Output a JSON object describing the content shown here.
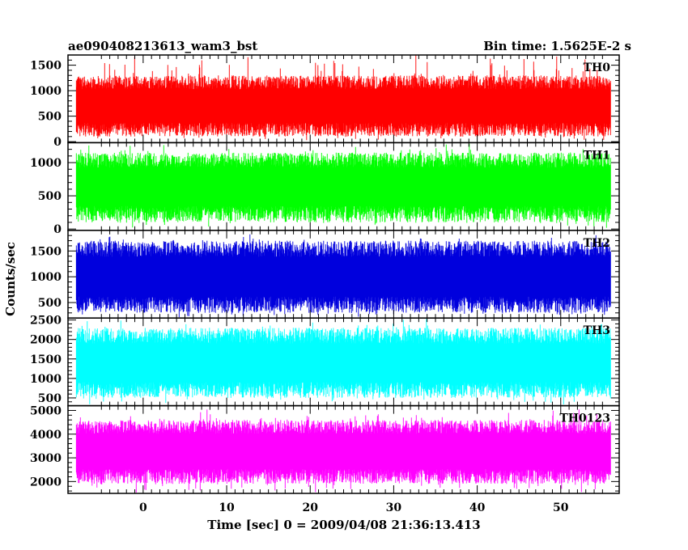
{
  "chart_data": {
    "type": "line",
    "title_left": "ae090408213613_wam3_bst",
    "title_right": "Bin time: 1.5625E-2  s",
    "xlabel": "Time [sec] 0 = 2009/04/08 21:36:13.413",
    "ylabel": "Counts/sec",
    "xlim": [
      -9,
      57
    ],
    "x_ticks_major": [
      0,
      10,
      20,
      30,
      40,
      50
    ],
    "x_tick_labels": [
      "0",
      "10",
      "20",
      "30",
      "40",
      "50"
    ],
    "data_x_range": [
      -8,
      56
    ],
    "bin_time_s": 0.015625,
    "panels": [
      {
        "name": "TH0",
        "color": "#ff0000",
        "ylim": [
          -20,
          1700
        ],
        "ticks_major": [
          0,
          500,
          1000,
          1500
        ],
        "tick_labels": [
          "0",
          "500",
          "1000",
          "1500"
        ],
        "minor_step": 100,
        "mean": 700,
        "low_p": 100,
        "high_p": 1300,
        "min": 0,
        "max": 1700
      },
      {
        "name": "TH1",
        "color": "#00ff00",
        "ylim": [
          -20,
          1300
        ],
        "ticks_major": [
          0,
          500,
          1000
        ],
        "tick_labels": [
          "0",
          "500",
          "1000"
        ],
        "minor_step": 100,
        "mean": 650,
        "low_p": 100,
        "high_p": 1150,
        "min": 0,
        "max": 1300
      },
      {
        "name": "TH2",
        "color": "#0000dd",
        "ylim": [
          200,
          1900
        ],
        "ticks_major": [
          500,
          1000,
          1500
        ],
        "tick_labels": [
          "500",
          "1000",
          "1500"
        ],
        "minor_step": 100,
        "mean": 1000,
        "low_p": 300,
        "high_p": 1700,
        "min": 200,
        "max": 1900
      },
      {
        "name": "TH3",
        "color": "#00ffff",
        "ylim": [
          300,
          2550
        ],
        "ticks_major": [
          500,
          1000,
          1500,
          2000,
          2500
        ],
        "tick_labels": [
          "500",
          "1000",
          "1500",
          "2000",
          "2500"
        ],
        "minor_step": 100,
        "mean": 1400,
        "low_p": 500,
        "high_p": 2300,
        "min": 300,
        "max": 2550
      },
      {
        "name": "TH0123",
        "color": "#ff00ff",
        "ylim": [
          1500,
          5200
        ],
        "ticks_major": [
          2000,
          3000,
          4000,
          5000
        ],
        "tick_labels": [
          "2000",
          "3000",
          "4000",
          "5000"
        ],
        "minor_step": 200,
        "mean": 3300,
        "low_p": 1900,
        "high_p": 4600,
        "min": 1500,
        "max": 5200
      }
    ]
  }
}
